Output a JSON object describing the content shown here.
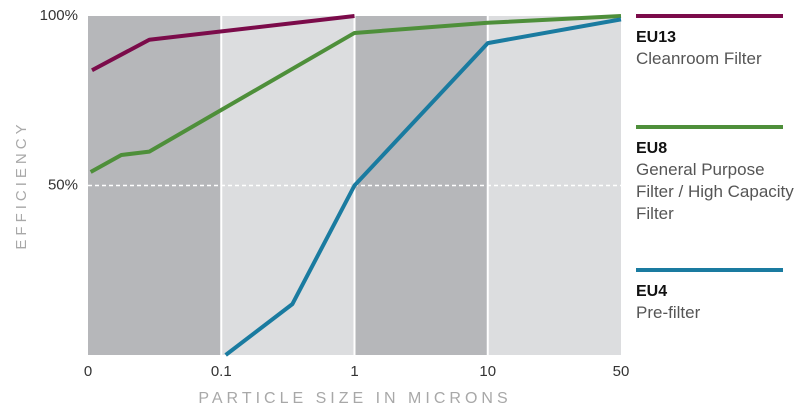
{
  "chart_data": {
    "type": "line",
    "x_label": "PARTICLE SIZE IN MICRONS",
    "y_label": "EFFICIENCY",
    "xlim": [
      0,
      50
    ],
    "xticks": [
      0,
      0.1,
      1,
      10,
      50
    ],
    "ylim": [
      0,
      100
    ],
    "yticks": [
      {
        "value": 50,
        "label": "50%"
      },
      {
        "value": 100,
        "label": "100%"
      }
    ],
    "grid": true,
    "series": [
      {
        "name": "EU13",
        "description": "Cleanroom Filter",
        "color": "#7b0b4a",
        "x": [
          0.003,
          0.046,
          1
        ],
        "values": [
          84,
          93,
          100
        ]
      },
      {
        "name": "EU8",
        "description": "General Purpose Filter / High Capacity Filter",
        "color": "#4e8f3a",
        "x": [
          0.002,
          0.025,
          0.046,
          1,
          10,
          50
        ],
        "values": [
          54,
          59,
          60,
          95,
          98,
          100
        ]
      },
      {
        "name": "EU4",
        "description": "Pre-filter",
        "color": "#1a7ba0",
        "x": [
          0.13,
          0.58,
          1,
          10,
          50
        ],
        "values": [
          0,
          15,
          50,
          92,
          99
        ]
      }
    ]
  }
}
